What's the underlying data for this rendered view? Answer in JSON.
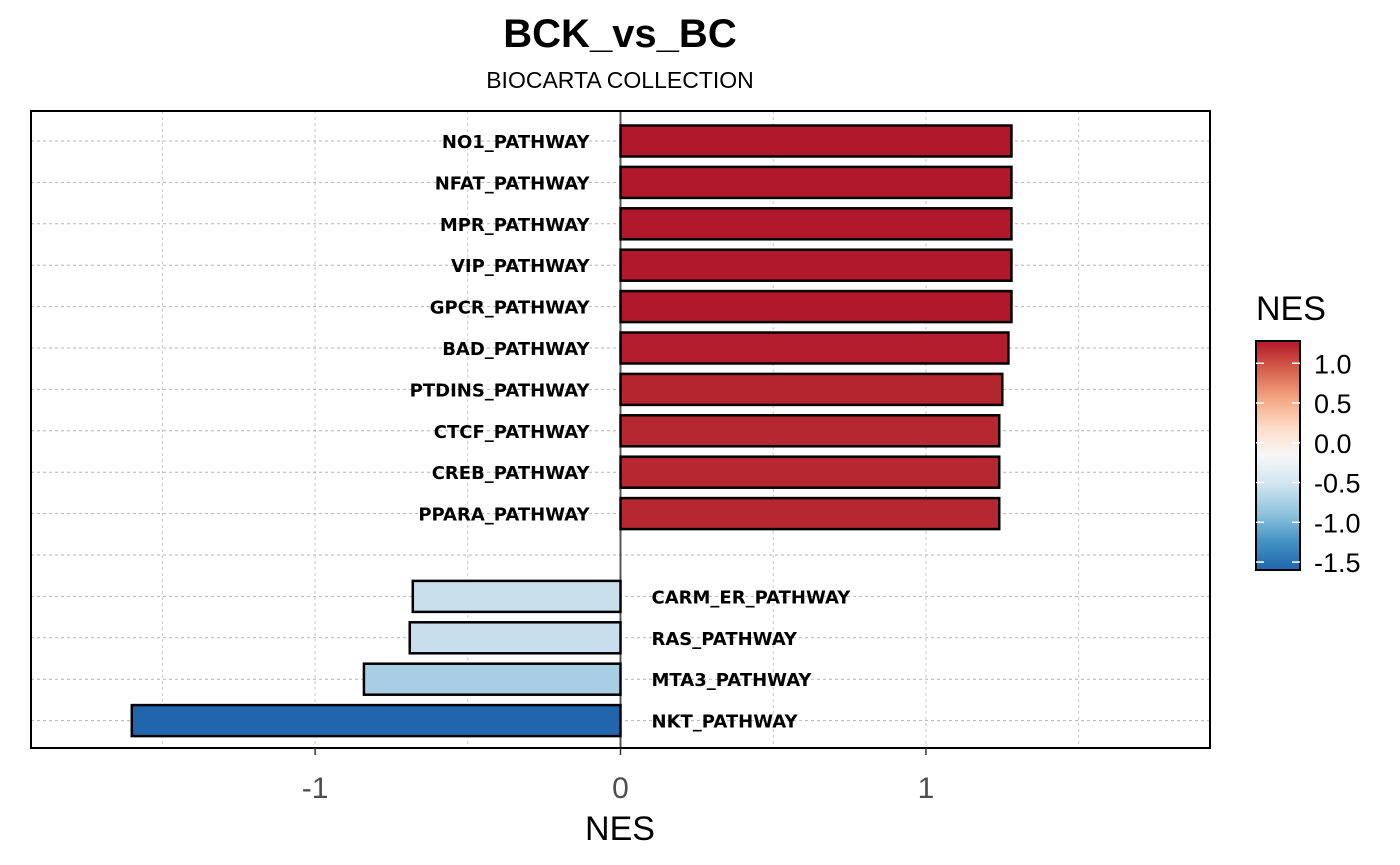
{
  "chart_data": {
    "type": "bar",
    "orientation": "horizontal",
    "title": "BCK_vs_BC",
    "subtitle": "BIOCARTA COLLECTION",
    "xlabel": "NES",
    "ylabel": "",
    "xlim": [
      -1.93,
      1.93
    ],
    "xticks": [
      -1,
      0,
      1
    ],
    "xtick_labels": [
      "-1",
      "0",
      "1"
    ],
    "minor_gridlines": [
      -1.5,
      -0.5,
      0.5,
      1.5
    ],
    "grid": true,
    "categories": [
      "NO1_PATHWAY",
      "NFAT_PATHWAY",
      "MPR_PATHWAY",
      "VIP_PATHWAY",
      "GPCR_PATHWAY",
      "BAD_PATHWAY",
      "PTDINS_PATHWAY",
      "CTCF_PATHWAY",
      "CREB_PATHWAY",
      "PPARA_PATHWAY",
      "",
      "CARM_ER_PATHWAY",
      "RAS_PATHWAY",
      "MTA3_PATHWAY",
      "NKT_PATHWAY"
    ],
    "values": [
      1.28,
      1.28,
      1.28,
      1.28,
      1.28,
      1.27,
      1.25,
      1.24,
      1.24,
      1.24,
      null,
      -0.68,
      -0.69,
      -0.84,
      -1.6
    ],
    "colors": [
      "#B2182B",
      "#B2182B",
      "#B2182B",
      "#B2182B",
      "#B2182B",
      "#B31D2D",
      "#B52530",
      "#B62731",
      "#B62731",
      "#B62731",
      null,
      "#CADFEC",
      "#C8DEEC",
      "#A9CDE3",
      "#2166AC"
    ],
    "legend": {
      "title": "NES",
      "position": "right",
      "ticks": [
        1.0,
        0.5,
        0.0,
        -0.5,
        -1.0,
        -1.5
      ],
      "tick_labels": [
        "1.0",
        "0.5",
        "0.0",
        "-0.5",
        "-1.0",
        "-1.5"
      ],
      "range": [
        -1.6,
        1.28
      ],
      "gradient": [
        "#B2182B",
        "#D6604D",
        "#F4A582",
        "#FDDBC7",
        "#F7F7F7",
        "#D1E5F0",
        "#92C5DE",
        "#4393C3",
        "#2166AC"
      ]
    }
  }
}
